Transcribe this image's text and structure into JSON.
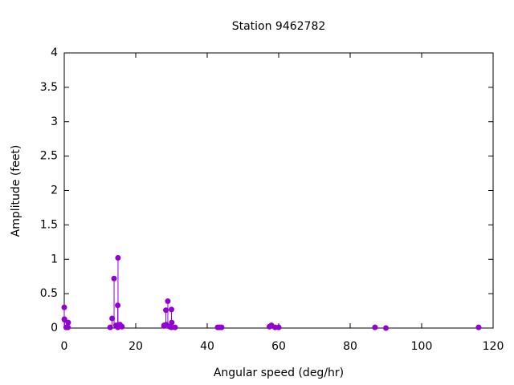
{
  "chart_data": {
    "type": "impulse",
    "title": "Station 9462782",
    "x_label": "Angular speed (deg/hr)",
    "y_label": "Amplitude (feet)",
    "color": "#9400d3",
    "x": [
      0,
      0.04,
      0.08,
      0.54,
      1.02,
      1.1,
      12.85,
      13.4,
      13.94,
      14.49,
      14.96,
      15.0,
      15.04,
      15.59,
      16.14,
      27.9,
      27.97,
      28.44,
      28.51,
      28.98,
      29.53,
      29.96,
      30.0,
      30.08,
      31.0,
      42.93,
      43.48,
      44.03,
      57.42,
      57.97,
      58.98,
      60.0,
      86.95,
      90.0,
      115.94
    ],
    "values": [
      0.3,
      0.13,
      0.12,
      0.01,
      0.01,
      0.08,
      0.01,
      0.14,
      0.72,
      0.04,
      0.33,
      0.01,
      1.02,
      0.05,
      0.02,
      0.03,
      0.04,
      0.26,
      0.05,
      0.39,
      0.02,
      0.01,
      0.27,
      0.08,
      0.01,
      0.01,
      0.01,
      0.01,
      0.02,
      0.04,
      0.01,
      0.01,
      0.01,
      0.0,
      0.01
    ],
    "xlim": [
      0,
      120
    ],
    "xticks": [
      0,
      20,
      40,
      60,
      80,
      100,
      120
    ],
    "ylim": [
      0,
      4
    ],
    "yticks": [
      0,
      0.5,
      1,
      1.5,
      2,
      2.5,
      3,
      3.5,
      4
    ],
    "grid": false
  }
}
